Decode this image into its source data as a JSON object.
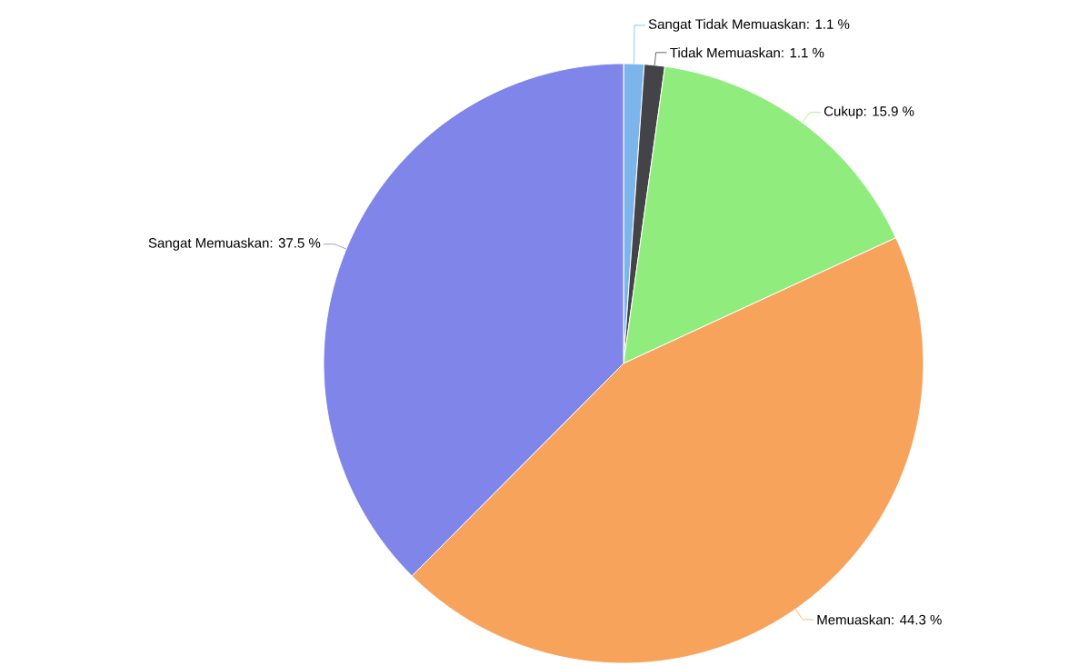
{
  "chart_data": {
    "type": "pie",
    "categories": [
      "Sangat Tidak Memuaskan",
      "Tidak Memuaskan",
      "Cukup",
      "Memuaskan",
      "Sangat Memuaskan"
    ],
    "values": [
      1.1,
      1.1,
      15.9,
      44.3,
      37.5
    ],
    "value_labels": [
      ": 1.1 %",
      ": 1.1 %",
      ": 15.9 %",
      ": 44.3 %",
      ": 37.5 %"
    ],
    "colors": [
      "#7cb5ec",
      "#434348",
      "#90ed7d",
      "#f7a35c",
      "#8085e9"
    ]
  }
}
